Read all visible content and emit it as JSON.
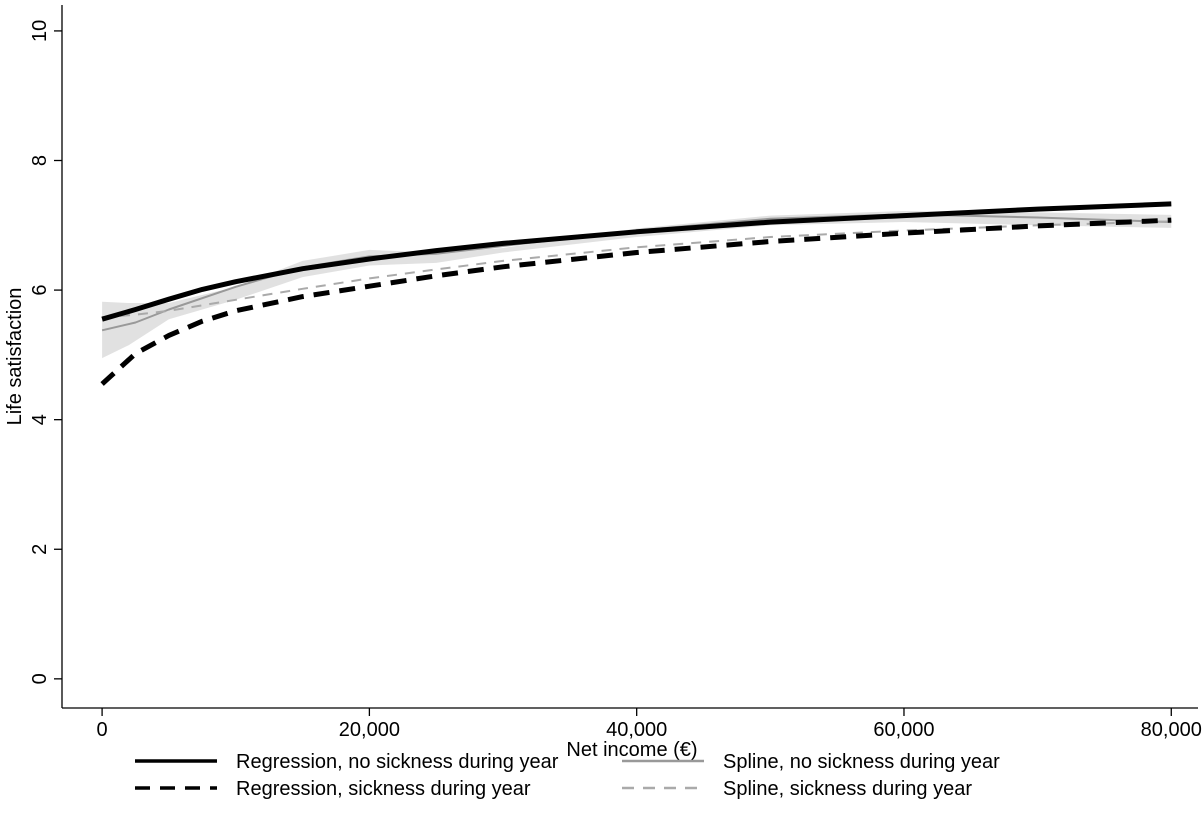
{
  "chart_data": {
    "type": "line",
    "title": "",
    "xlabel": "Net income (€)",
    "ylabel": "Life satisfaction",
    "xlim": [
      -3000,
      82000
    ],
    "ylim": [
      -0.45,
      10.4
    ],
    "x_ticks": [
      0,
      20000,
      40000,
      60000,
      80000
    ],
    "x_tick_labels": [
      "0",
      "20,000",
      "40,000",
      "60,000",
      "80,000"
    ],
    "y_ticks": [
      0,
      2,
      4,
      6,
      8,
      10
    ],
    "y_tick_labels": [
      "0",
      "2",
      "4",
      "6",
      "8",
      "10"
    ],
    "grid": false,
    "legend_position": "bottom",
    "confidence_band": {
      "x": [
        0,
        2000,
        5000,
        10000,
        15000,
        20000,
        25000,
        30000,
        40000,
        50000,
        60000,
        70000,
        80000
      ],
      "upper": [
        5.82,
        5.8,
        5.8,
        6.05,
        6.45,
        6.62,
        6.58,
        6.65,
        6.95,
        7.15,
        7.22,
        7.2,
        7.16
      ],
      "lower": [
        4.95,
        5.15,
        5.55,
        5.85,
        6.2,
        6.38,
        6.42,
        6.58,
        6.82,
        7.0,
        7.05,
        7.0,
        6.96
      ]
    },
    "series": [
      {
        "name": "Regression, no sickness during year",
        "style": "solid",
        "color": "#000000",
        "width": 5,
        "x": [
          0,
          2500,
          5000,
          7500,
          10000,
          15000,
          20000,
          25000,
          30000,
          40000,
          50000,
          60000,
          70000,
          80000
        ],
        "y": [
          5.55,
          5.7,
          5.86,
          6.01,
          6.13,
          6.33,
          6.48,
          6.61,
          6.72,
          6.9,
          7.05,
          7.15,
          7.25,
          7.33
        ]
      },
      {
        "name": "Regression, sickness during year",
        "style": "dashed",
        "color": "#000000",
        "width": 5,
        "x": [
          0,
          2500,
          5000,
          7500,
          10000,
          15000,
          20000,
          25000,
          30000,
          40000,
          50000,
          60000,
          70000,
          80000
        ],
        "y": [
          4.55,
          5.02,
          5.3,
          5.52,
          5.68,
          5.9,
          6.06,
          6.22,
          6.36,
          6.58,
          6.75,
          6.88,
          6.99,
          7.08
        ]
      },
      {
        "name": "Spline, no sickness during year",
        "style": "solid",
        "color": "#999999",
        "width": 2,
        "x": [
          0,
          2500,
          5000,
          10000,
          15000,
          20000,
          25000,
          30000,
          40000,
          50000,
          60000,
          70000,
          80000
        ],
        "y": [
          5.38,
          5.5,
          5.7,
          6.05,
          6.35,
          6.52,
          6.56,
          6.68,
          6.92,
          7.1,
          7.17,
          7.12,
          7.05
        ]
      },
      {
        "name": "Spline, sickness during year",
        "style": "dashed",
        "color": "#aaaaaa",
        "width": 2,
        "x": [
          0,
          2500,
          5000,
          10000,
          15000,
          20000,
          25000,
          30000,
          40000,
          50000,
          60000,
          70000,
          80000
        ],
        "y": [
          5.58,
          5.62,
          5.68,
          5.85,
          6.02,
          6.18,
          6.32,
          6.45,
          6.66,
          6.82,
          6.92,
          7.0,
          7.06
        ]
      }
    ]
  }
}
